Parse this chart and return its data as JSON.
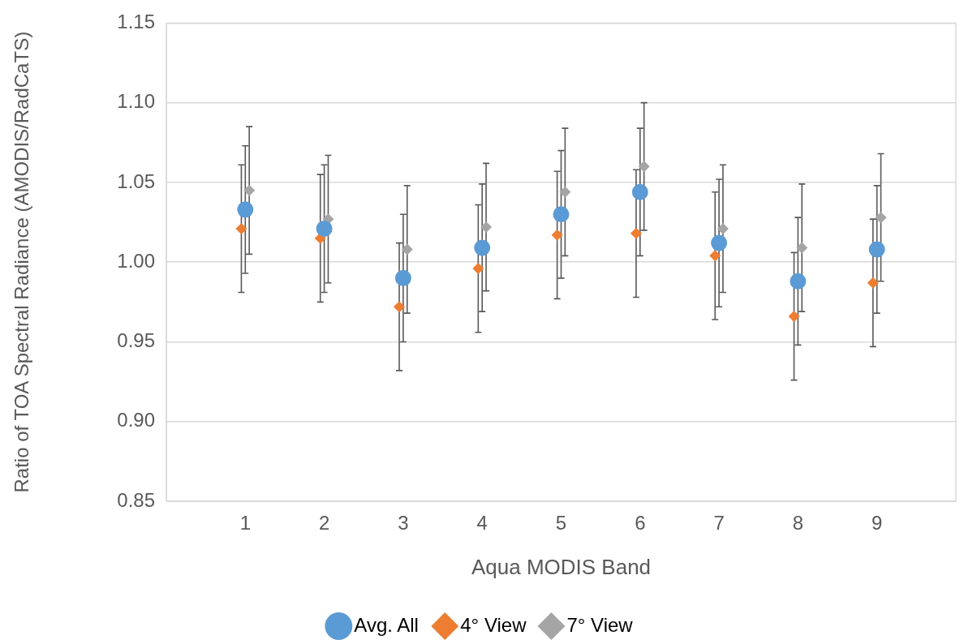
{
  "chart_data": {
    "type": "scatter",
    "xlabel": "Aqua MODIS Band",
    "ylabel": "Ratio of TOA Spectral Radiance (AMODIS/RadCaTS)",
    "xlim": [
      0,
      10
    ],
    "xticks": [
      1,
      2,
      3,
      4,
      5,
      6,
      7,
      8,
      9
    ],
    "ylim": [
      0.85,
      1.15
    ],
    "yticks": [
      {
        "value": 0.85,
        "label": "0.85"
      },
      {
        "value": 0.9,
        "label": "0.90"
      },
      {
        "value": 0.95,
        "label": "0.95"
      },
      {
        "value": 1.0,
        "label": "1.00"
      },
      {
        "value": 1.05,
        "label": "1.05"
      },
      {
        "value": 1.1,
        "label": "1.10"
      },
      {
        "value": 1.15,
        "label": "1.15"
      }
    ],
    "grid": "y",
    "legend": "bottom",
    "series": [
      {
        "name": "Avg. All",
        "color": "#5b9bd5",
        "marker": "circle",
        "x": [
          1,
          2,
          3,
          4,
          5,
          6,
          7,
          8,
          9
        ],
        "values": [
          1.033,
          1.021,
          0.99,
          1.009,
          1.03,
          1.044,
          1.012,
          0.988,
          1.008
        ],
        "errors": [
          0.04,
          0.04,
          0.04,
          0.04,
          0.04,
          0.04,
          0.04,
          0.04,
          0.04
        ]
      },
      {
        "name": "4° View",
        "color": "#ed7d31",
        "marker": "diamond",
        "x": [
          0.95,
          1.95,
          2.95,
          3.95,
          4.95,
          5.95,
          6.95,
          7.95,
          8.95
        ],
        "values": [
          1.021,
          1.015,
          0.972,
          0.996,
          1.017,
          1.018,
          1.004,
          0.966,
          0.987
        ],
        "errors": [
          0.04,
          0.04,
          0.04,
          0.04,
          0.04,
          0.04,
          0.04,
          0.04,
          0.04
        ]
      },
      {
        "name": "7° View",
        "color": "#a5a5a5",
        "marker": "diamond",
        "x": [
          1.05,
          2.05,
          3.05,
          4.05,
          5.05,
          6.05,
          7.05,
          8.05,
          9.05
        ],
        "values": [
          1.045,
          1.027,
          1.008,
          1.022,
          1.044,
          1.06,
          1.021,
          1.009,
          1.028
        ],
        "errors": [
          0.04,
          0.04,
          0.04,
          0.04,
          0.04,
          0.04,
          0.04,
          0.04,
          0.04
        ]
      }
    ]
  }
}
